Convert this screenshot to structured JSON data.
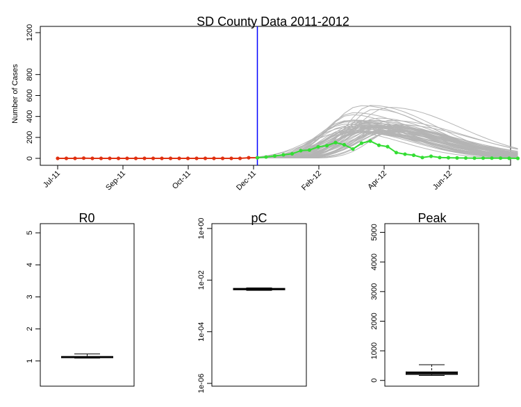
{
  "chart_data": [
    {
      "type": "line",
      "title": "SD County Data 2011-2012",
      "xlabel": "",
      "ylabel": "Number of Cases",
      "ylim": [
        0,
        1200
      ],
      "yticks": [
        0,
        200,
        400,
        600,
        800,
        1200
      ],
      "x_ticks": [
        "Jul-11",
        "Sep-11",
        "Oct-11",
        "Dec-11",
        "Feb-12",
        "Apr-12",
        "Jun-12"
      ],
      "grid": false,
      "forecast_start": "Dec-11",
      "colors": {
        "observed_before": "#e03010",
        "observed_after": "#33dd33",
        "simulations": "#b4b4b4",
        "forecast_line": "#0000ff"
      },
      "series": [
        {
          "values": [
            0,
            0,
            0,
            2,
            0,
            0,
            0,
            0,
            0,
            0,
            0,
            0,
            0,
            0,
            0,
            0,
            0,
            0,
            0,
            0,
            0,
            0,
            6,
            6
          ]
        },
        {
          "values": [
            6,
            13,
            23,
            34,
            44,
            74,
            79,
            110,
            121,
            151,
            130,
            89,
            145,
            165,
            125,
            112,
            55,
            40,
            30,
            8,
            20,
            8,
            6,
            4,
            3,
            2,
            2,
            2,
            2,
            1,
            0
          ]
        }
      ],
      "simulation_summary": {
        "count": 60,
        "peak_range": [
          250,
          530
        ],
        "end_value_range": [
          5,
          40
        ]
      }
    },
    {
      "type": "box",
      "title": "R0",
      "ylim": [
        0.3,
        5.2
      ],
      "yticks": [
        1,
        2,
        3,
        4,
        5
      ],
      "box": {
        "min": 1.09,
        "q1": 1.1,
        "median": 1.12,
        "q3": 1.14,
        "max": 1.22
      }
    },
    {
      "type": "box",
      "title": "pC",
      "log_scale": true,
      "ylim": [
        1e-06,
        1.2
      ],
      "yticks": [
        1e-06,
        0.0001,
        0.01,
        1
      ],
      "ytick_labels": [
        "1e-06",
        "1e-04",
        "1e-02",
        "1e+00"
      ],
      "box": {
        "min": 0.004,
        "q1": 0.0042,
        "median": 0.0045,
        "q3": 0.0048,
        "max": 0.005
      }
    },
    {
      "type": "box",
      "title": "Peak",
      "ylim": [
        -100,
        5200
      ],
      "yticks": [
        0,
        1000,
        2000,
        3000,
        4000,
        5000
      ],
      "box": {
        "min": 170,
        "q1": 200,
        "median": 245,
        "q3": 290,
        "max": 530
      }
    }
  ]
}
